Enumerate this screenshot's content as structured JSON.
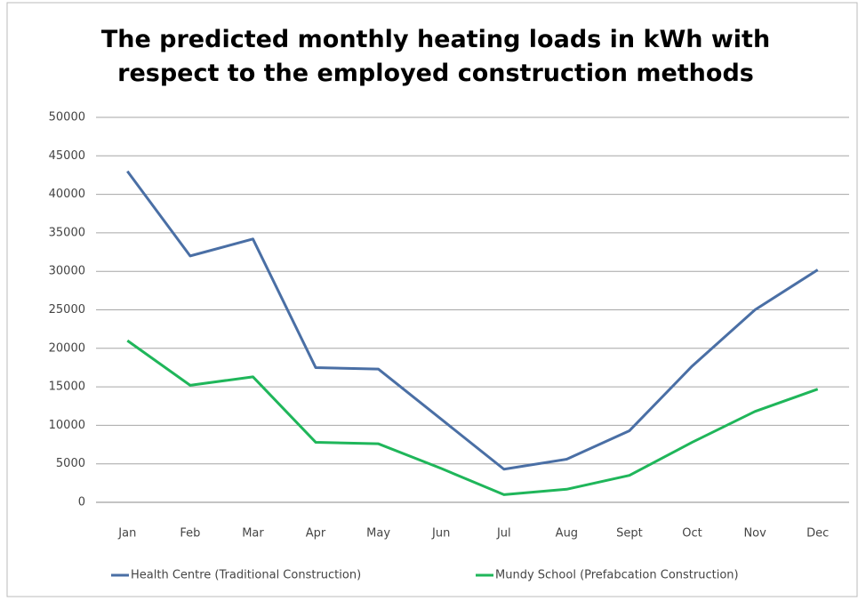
{
  "chart_data": {
    "type": "line",
    "title": "The predicted monthly heating loads in kWh with respect to the employed construction methods",
    "categories": [
      "Jan",
      "Feb",
      "Mar",
      "Apr",
      "May",
      "Jun",
      "Jul",
      "Aug",
      "Sept",
      "Oct",
      "Nov",
      "Dec"
    ],
    "series": [
      {
        "name": "Health Centre (Traditional Construction)",
        "color": "#4a6fa5",
        "values": [
          43000,
          32000,
          34200,
          17500,
          17300,
          10800,
          4300,
          5600,
          9300,
          17700,
          25000,
          30200
        ]
      },
      {
        "name": "Mundy School (Prefabcation Construction)",
        "color": "#1fb65a",
        "values": [
          21000,
          15200,
          16300,
          7800,
          7600,
          4400,
          1000,
          1700,
          3500,
          7800,
          11800,
          14700
        ]
      }
    ],
    "ylim": [
      0,
      50000
    ],
    "yticks": [
      0,
      5000,
      10000,
      15000,
      20000,
      25000,
      30000,
      35000,
      40000,
      45000,
      50000
    ],
    "grid": true,
    "legend": "bottom"
  }
}
